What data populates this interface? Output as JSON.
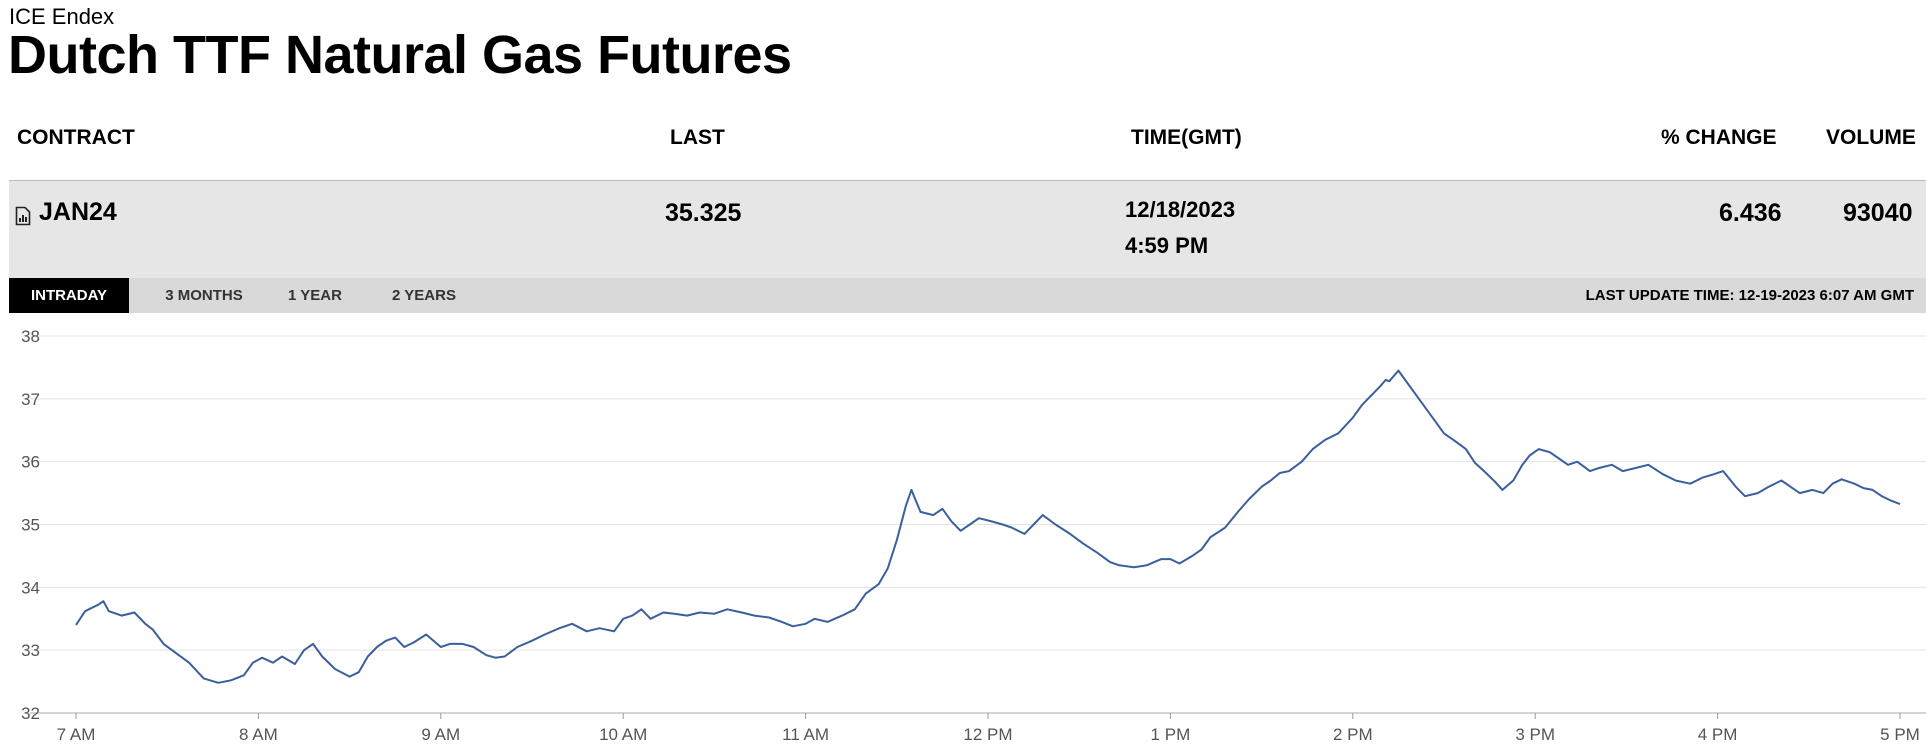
{
  "header": {
    "exchange": "ICE Endex",
    "title": "Dutch TTF Natural Gas Futures"
  },
  "table": {
    "columns": [
      "CONTRACT",
      "LAST",
      "TIME(GMT)",
      "% CHANGE",
      "VOLUME"
    ],
    "row": {
      "contract": "JAN24",
      "last": "35.325",
      "date": "12/18/2023",
      "time": "4:59 PM",
      "pct_change": "6.436",
      "volume": "93040"
    }
  },
  "tabs": [
    "INTRADAY",
    "3 MONTHS",
    "1 YEAR",
    "2 YEARS"
  ],
  "active_tab": "INTRADAY",
  "last_update": "LAST UPDATE TIME: 12-19-2023 6:07 AM GMT",
  "colors": {
    "line": "#3a5f9e",
    "tab_active_bg": "#000000",
    "row_bg": "#e6e6e6"
  },
  "chart_data": {
    "type": "line",
    "xlabel": "",
    "ylabel": "",
    "x_ticks": [
      "7 AM",
      "8 AM",
      "9 AM",
      "10 AM",
      "11 AM",
      "12 PM",
      "1 PM",
      "2 PM",
      "3 PM",
      "4 PM",
      "5 PM"
    ],
    "y_ticks": [
      32,
      33,
      34,
      35,
      36,
      37,
      38
    ],
    "ylim": [
      32,
      38
    ],
    "xlim_hours": [
      7,
      17
    ],
    "grid": true,
    "series": [
      {
        "points": [
          [
            7.0,
            33.4
          ],
          [
            7.05,
            33.62
          ],
          [
            7.12,
            33.72
          ],
          [
            7.15,
            33.78
          ],
          [
            7.18,
            33.62
          ],
          [
            7.25,
            33.55
          ],
          [
            7.32,
            33.6
          ],
          [
            7.38,
            33.42
          ],
          [
            7.42,
            33.33
          ],
          [
            7.48,
            33.1
          ],
          [
            7.55,
            32.95
          ],
          [
            7.62,
            32.8
          ],
          [
            7.7,
            32.55
          ],
          [
            7.78,
            32.48
          ],
          [
            7.85,
            32.52
          ],
          [
            7.92,
            32.6
          ],
          [
            7.97,
            32.8
          ],
          [
            8.02,
            32.88
          ],
          [
            8.08,
            32.8
          ],
          [
            8.13,
            32.9
          ],
          [
            8.2,
            32.78
          ],
          [
            8.25,
            33.0
          ],
          [
            8.3,
            33.1
          ],
          [
            8.35,
            32.9
          ],
          [
            8.42,
            32.7
          ],
          [
            8.5,
            32.58
          ],
          [
            8.55,
            32.65
          ],
          [
            8.6,
            32.9
          ],
          [
            8.65,
            33.05
          ],
          [
            8.7,
            33.15
          ],
          [
            8.75,
            33.2
          ],
          [
            8.8,
            33.05
          ],
          [
            8.85,
            33.12
          ],
          [
            8.92,
            33.25
          ],
          [
            9.0,
            33.05
          ],
          [
            9.05,
            33.1
          ],
          [
            9.12,
            33.1
          ],
          [
            9.18,
            33.05
          ],
          [
            9.25,
            32.92
          ],
          [
            9.3,
            32.88
          ],
          [
            9.35,
            32.9
          ],
          [
            9.42,
            33.05
          ],
          [
            9.5,
            33.15
          ],
          [
            9.57,
            33.25
          ],
          [
            9.65,
            33.35
          ],
          [
            9.72,
            33.42
          ],
          [
            9.8,
            33.3
          ],
          [
            9.87,
            33.35
          ],
          [
            9.95,
            33.3
          ],
          [
            10.0,
            33.5
          ],
          [
            10.05,
            33.55
          ],
          [
            10.1,
            33.65
          ],
          [
            10.15,
            33.5
          ],
          [
            10.22,
            33.6
          ],
          [
            10.28,
            33.58
          ],
          [
            10.35,
            33.55
          ],
          [
            10.42,
            33.6
          ],
          [
            10.5,
            33.58
          ],
          [
            10.57,
            33.65
          ],
          [
            10.65,
            33.6
          ],
          [
            10.72,
            33.55
          ],
          [
            10.8,
            33.52
          ],
          [
            10.87,
            33.45
          ],
          [
            10.93,
            33.38
          ],
          [
            11.0,
            33.42
          ],
          [
            11.05,
            33.5
          ],
          [
            11.12,
            33.45
          ],
          [
            11.2,
            33.55
          ],
          [
            11.27,
            33.65
          ],
          [
            11.33,
            33.9
          ],
          [
            11.4,
            34.05
          ],
          [
            11.45,
            34.3
          ],
          [
            11.5,
            34.75
          ],
          [
            11.55,
            35.3
          ],
          [
            11.58,
            35.55
          ],
          [
            11.63,
            35.2
          ],
          [
            11.7,
            35.15
          ],
          [
            11.75,
            35.25
          ],
          [
            11.8,
            35.05
          ],
          [
            11.85,
            34.9
          ],
          [
            11.9,
            35.0
          ],
          [
            11.95,
            35.1
          ],
          [
            12.02,
            35.05
          ],
          [
            12.08,
            35.0
          ],
          [
            12.13,
            34.95
          ],
          [
            12.2,
            34.85
          ],
          [
            12.25,
            35.0
          ],
          [
            12.3,
            35.15
          ],
          [
            12.37,
            35.0
          ],
          [
            12.45,
            34.85
          ],
          [
            12.52,
            34.7
          ],
          [
            12.6,
            34.55
          ],
          [
            12.67,
            34.4
          ],
          [
            12.72,
            34.35
          ],
          [
            12.8,
            34.32
          ],
          [
            12.87,
            34.35
          ],
          [
            12.95,
            34.45
          ],
          [
            13.0,
            34.45
          ],
          [
            13.05,
            34.38
          ],
          [
            13.12,
            34.5
          ],
          [
            13.17,
            34.6
          ],
          [
            13.22,
            34.8
          ],
          [
            13.3,
            34.95
          ],
          [
            13.37,
            35.2
          ],
          [
            13.43,
            35.4
          ],
          [
            13.5,
            35.6
          ],
          [
            13.55,
            35.7
          ],
          [
            13.6,
            35.82
          ],
          [
            13.65,
            35.85
          ],
          [
            13.72,
            36.0
          ],
          [
            13.78,
            36.2
          ],
          [
            13.85,
            36.35
          ],
          [
            13.92,
            36.45
          ],
          [
            14.0,
            36.7
          ],
          [
            14.05,
            36.9
          ],
          [
            14.1,
            37.05
          ],
          [
            14.15,
            37.2
          ],
          [
            14.18,
            37.3
          ],
          [
            14.2,
            37.28
          ],
          [
            14.25,
            37.45
          ],
          [
            14.3,
            37.25
          ],
          [
            14.35,
            37.05
          ],
          [
            14.4,
            36.85
          ],
          [
            14.45,
            36.65
          ],
          [
            14.5,
            36.45
          ],
          [
            14.55,
            36.35
          ],
          [
            14.62,
            36.2
          ],
          [
            14.67,
            35.98
          ],
          [
            14.72,
            35.85
          ],
          [
            14.78,
            35.68
          ],
          [
            14.82,
            35.55
          ],
          [
            14.88,
            35.7
          ],
          [
            14.93,
            35.95
          ],
          [
            14.97,
            36.1
          ],
          [
            15.02,
            36.2
          ],
          [
            15.08,
            36.15
          ],
          [
            15.13,
            36.05
          ],
          [
            15.18,
            35.95
          ],
          [
            15.23,
            36.0
          ],
          [
            15.3,
            35.85
          ],
          [
            15.35,
            35.9
          ],
          [
            15.42,
            35.95
          ],
          [
            15.48,
            35.85
          ],
          [
            15.55,
            35.9
          ],
          [
            15.62,
            35.95
          ],
          [
            15.7,
            35.8
          ],
          [
            15.77,
            35.7
          ],
          [
            15.85,
            35.65
          ],
          [
            15.92,
            35.75
          ],
          [
            15.98,
            35.8
          ],
          [
            16.03,
            35.85
          ],
          [
            16.1,
            35.6
          ],
          [
            16.15,
            35.45
          ],
          [
            16.22,
            35.5
          ],
          [
            16.28,
            35.6
          ],
          [
            16.35,
            35.7
          ],
          [
            16.4,
            35.6
          ],
          [
            16.45,
            35.5
          ],
          [
            16.52,
            35.55
          ],
          [
            16.58,
            35.5
          ],
          [
            16.63,
            35.65
          ],
          [
            16.68,
            35.72
          ],
          [
            16.75,
            35.65
          ],
          [
            16.8,
            35.58
          ],
          [
            16.85,
            35.55
          ],
          [
            16.9,
            35.45
          ],
          [
            16.95,
            35.38
          ],
          [
            17.0,
            35.325
          ]
        ]
      }
    ]
  }
}
